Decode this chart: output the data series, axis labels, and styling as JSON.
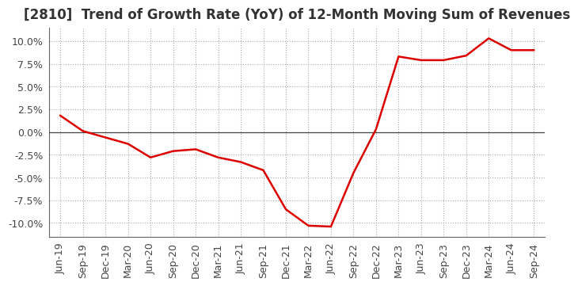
{
  "title": "[2810]  Trend of Growth Rate (YoY) of 12-Month Moving Sum of Revenues",
  "x_labels": [
    "Jun-19",
    "Sep-19",
    "Dec-19",
    "Mar-20",
    "Jun-20",
    "Sep-20",
    "Dec-20",
    "Mar-21",
    "Jun-21",
    "Sep-21",
    "Dec-21",
    "Mar-22",
    "Jun-22",
    "Sep-22",
    "Dec-22",
    "Mar-23",
    "Jun-23",
    "Sep-23",
    "Dec-23",
    "Mar-24",
    "Jun-24",
    "Sep-24"
  ],
  "y_values": [
    1.8,
    0.1,
    -0.6,
    -1.3,
    -2.8,
    -2.1,
    -1.9,
    -2.8,
    -3.3,
    -4.2,
    -8.5,
    -10.3,
    -10.4,
    -4.5,
    0.3,
    8.3,
    7.9,
    7.9,
    8.4,
    10.3,
    9.0,
    9.0
  ],
  "line_color": "#dd0000",
  "line_width": 1.8,
  "ylim": [
    -11.5,
    11.5
  ],
  "yticks": [
    -10.0,
    -7.5,
    -5.0,
    -2.5,
    0.0,
    2.5,
    5.0,
    7.5,
    10.0
  ],
  "bg_color": "#ffffff",
  "plot_bg_color": "#ffffff",
  "grid_color": "#aaaaaa",
  "zero_line_color": "#444444",
  "title_fontsize": 12,
  "tick_fontsize": 9,
  "title_color": "#333333"
}
